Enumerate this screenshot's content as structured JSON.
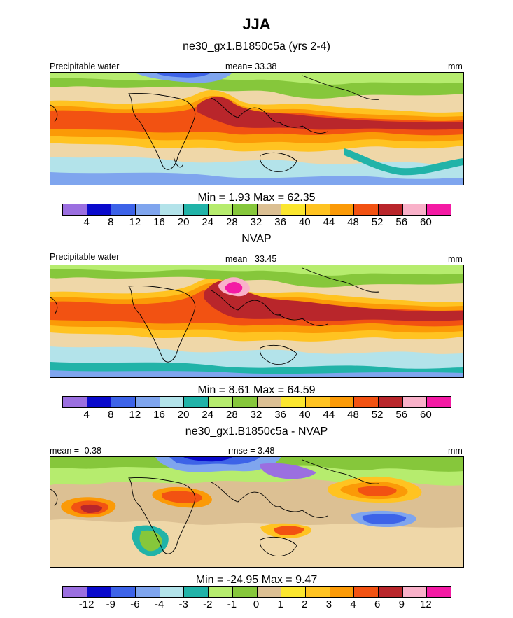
{
  "chart_data": [
    {
      "type": "heatmap",
      "title": "JJA",
      "subtitle": "ne30_gx1.B1850c5a (yrs 2-4)",
      "left_label": "Precipitable water",
      "center_label": "mean=  33.38",
      "right_label": "mm",
      "stat_line": "Min =   1.93 Max =  62.35",
      "min": 1.93,
      "max": 62.35,
      "mean": 33.38,
      "colorbar_levels": [
        "4",
        "8",
        "12",
        "16",
        "20",
        "24",
        "28",
        "32",
        "36",
        "40",
        "44",
        "48",
        "52",
        "56",
        "60"
      ]
    },
    {
      "type": "heatmap",
      "subtitle": "NVAP",
      "left_label": "Precipitable water",
      "center_label": "mean=  33.45",
      "right_label": "mm",
      "stat_line": "Min =   8.61 Max =  64.59",
      "min": 8.61,
      "max": 64.59,
      "mean": 33.45,
      "colorbar_levels": [
        "4",
        "8",
        "12",
        "16",
        "20",
        "24",
        "28",
        "32",
        "36",
        "40",
        "44",
        "48",
        "52",
        "56",
        "60"
      ]
    },
    {
      "type": "heatmap",
      "subtitle": "ne30_gx1.B1850c5a - NVAP",
      "left_label": "mean =  -0.38",
      "center_label": "rmse =   3.48",
      "right_label": "mm",
      "stat_line": "Min = -24.95 Max =   9.47",
      "min": -24.95,
      "max": 9.47,
      "mean": -0.38,
      "rmse": 3.48,
      "colorbar_levels": [
        "-12",
        "-9",
        "-6",
        "-4",
        "-3",
        "-2",
        "-1",
        "0",
        "1",
        "2",
        "3",
        "4",
        "6",
        "9",
        "12"
      ]
    }
  ],
  "palette": [
    "#9b6fe0",
    "#0a0acc",
    "#3d63e8",
    "#7fa5ee",
    "#b3e3ea",
    "#21b3a8",
    "#b6ec6e",
    "#86c73b",
    "#dcc093",
    "#fbe62f",
    "#ffc321",
    "#fb9a07",
    "#f25212",
    "#b9262b",
    "#f9b1c9",
    "#f41aa4"
  ]
}
